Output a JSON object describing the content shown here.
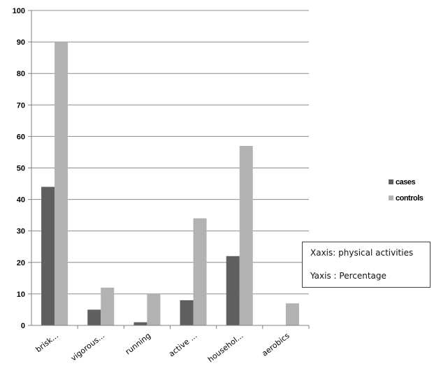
{
  "chart_data": {
    "type": "bar",
    "categories": [
      "brisk...",
      "vigorous...",
      "running",
      "active ...",
      "househol...",
      "aerobics"
    ],
    "series": [
      {
        "name": "cases",
        "color": "#5f5f5f",
        "values": [
          44,
          5,
          1,
          8,
          22,
          0
        ]
      },
      {
        "name": "controls",
        "color": "#b2b2b2",
        "values": [
          90,
          12,
          10,
          34,
          57,
          7
        ]
      }
    ],
    "y_ticks": [
      "0",
      "10",
      "20",
      "30",
      "40",
      "50",
      "60",
      "70",
      "80",
      "90",
      "100"
    ],
    "ylim": [
      0,
      100
    ],
    "grid": true,
    "legend_position": "right",
    "annotations": [
      "Xaxis: physical activities",
      "Yaxis : Percentage"
    ]
  }
}
